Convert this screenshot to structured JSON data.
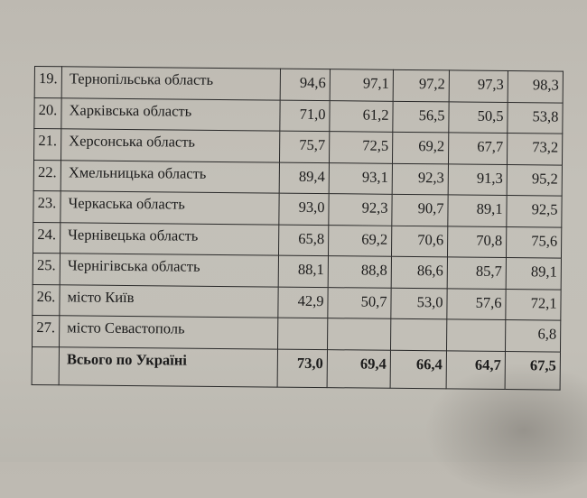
{
  "table": {
    "rows": [
      {
        "num": "19.",
        "name": "Тернопільська область",
        "values": [
          "94,6",
          "97,1",
          "97,2",
          "97,3",
          "98,3"
        ]
      },
      {
        "num": "20.",
        "name": "Харківська область",
        "values": [
          "71,0",
          "61,2",
          "56,5",
          "50,5",
          "53,8"
        ]
      },
      {
        "num": "21.",
        "name": "Херсонська область",
        "values": [
          "75,7",
          "72,5",
          "69,2",
          "67,7",
          "73,2"
        ]
      },
      {
        "num": "22.",
        "name": "Хмельницька область",
        "values": [
          "89,4",
          "93,1",
          "92,3",
          "91,3",
          "95,2"
        ]
      },
      {
        "num": "23.",
        "name": "Черкаська область",
        "values": [
          "93,0",
          "92,3",
          "90,7",
          "89,1",
          "92,5"
        ]
      },
      {
        "num": "24.",
        "name": "Чернівецька область",
        "values": [
          "65,8",
          "69,2",
          "70,6",
          "70,8",
          "75,6"
        ]
      },
      {
        "num": "25.",
        "name": "Чернігівська область",
        "values": [
          "88,1",
          "88,8",
          "86,6",
          "85,7",
          "89,1"
        ]
      },
      {
        "num": "26.",
        "name": "місто Київ",
        "values": [
          "42,9",
          "50,7",
          "53,0",
          "57,6",
          "72,1"
        ]
      },
      {
        "num": "27.",
        "name": "місто Севастополь",
        "values": [
          "",
          "",
          "",
          "",
          "6,8"
        ]
      }
    ],
    "total": {
      "num": "",
      "name": "Всього по Україні",
      "values": [
        "73,0",
        "69,4",
        "66,4",
        "64,7",
        "67,5"
      ]
    }
  }
}
